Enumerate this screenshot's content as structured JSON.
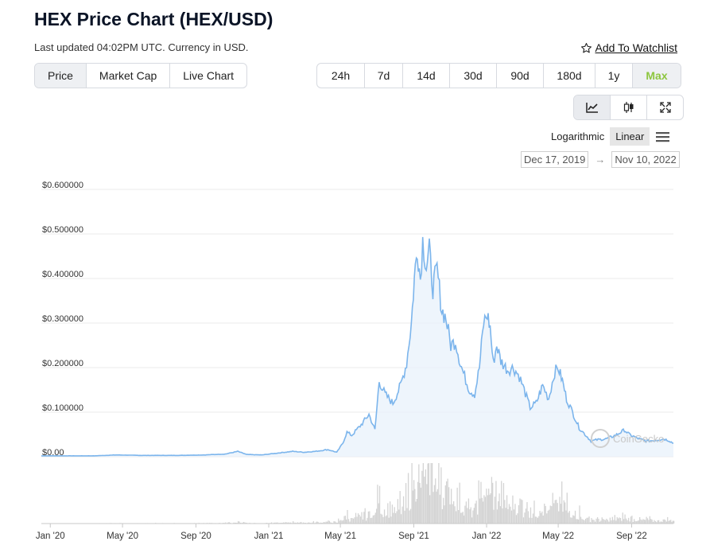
{
  "header": {
    "title": "HEX Price Chart (HEX/USD)",
    "subtitle": "Last updated 04:02PM UTC. Currency in USD.",
    "watchlist_label": "Add To Watchlist"
  },
  "view_tabs": [
    "Price",
    "Market Cap",
    "Live Chart"
  ],
  "active_view": "Price",
  "ranges": [
    "24h",
    "7d",
    "14d",
    "30d",
    "90d",
    "180d",
    "1y",
    "Max"
  ],
  "active_range": "Max",
  "tools": [
    "line-chart-icon",
    "candlestick-icon",
    "fullscreen-icon"
  ],
  "scale": {
    "log_label": "Logarithmic",
    "linear_label": "Linear",
    "selected": "Linear"
  },
  "date_range": {
    "from": "Dec 17, 2019",
    "to": "Nov 10, 2022"
  },
  "watermark": "CoinGecko",
  "colors": {
    "line": "#7cb5ec",
    "area": "#e8f1fb",
    "accent": "#8dc63f",
    "volume": "#d4d4d4"
  },
  "chart_data": {
    "type": "area",
    "title": "",
    "xlabel": "",
    "ylabel": "",
    "y_ticks": [
      "$0.00",
      "$0.100000",
      "$0.200000",
      "$0.300000",
      "$0.400000",
      "$0.500000",
      "$0.600000"
    ],
    "ylim": [
      0,
      0.6
    ],
    "x_ticks": [
      "Jan '20",
      "May '20",
      "Sep '20",
      "Jan '21",
      "May '21",
      "Sep '21",
      "Jan '22",
      "May '22",
      "Sep '22"
    ],
    "x_tick_dates": [
      "2020-01-01",
      "2020-05-01",
      "2020-09-01",
      "2021-01-01",
      "2021-05-01",
      "2021-09-01",
      "2022-01-01",
      "2022-05-01",
      "2022-09-01"
    ],
    "xlim": [
      "2019-12-17",
      "2022-11-10"
    ],
    "series": [
      {
        "name": "Price",
        "points": [
          [
            "2019-12-17",
            0.002
          ],
          [
            "2020-02-01",
            0.002
          ],
          [
            "2020-03-15",
            0.002
          ],
          [
            "2020-04-20",
            0.004
          ],
          [
            "2020-06-01",
            0.003
          ],
          [
            "2020-08-01",
            0.003
          ],
          [
            "2020-09-15",
            0.004
          ],
          [
            "2020-10-20",
            0.006
          ],
          [
            "2020-11-10",
            0.012
          ],
          [
            "2020-11-25",
            0.005
          ],
          [
            "2020-12-20",
            0.004
          ],
          [
            "2021-01-15",
            0.008
          ],
          [
            "2021-02-10",
            0.012
          ],
          [
            "2021-03-01",
            0.01
          ],
          [
            "2021-03-20",
            0.012
          ],
          [
            "2021-04-10",
            0.016
          ],
          [
            "2021-04-25",
            0.01
          ],
          [
            "2021-05-05",
            0.03
          ],
          [
            "2021-05-12",
            0.055
          ],
          [
            "2021-05-20",
            0.048
          ],
          [
            "2021-06-05",
            0.072
          ],
          [
            "2021-06-18",
            0.095
          ],
          [
            "2021-06-28",
            0.06
          ],
          [
            "2021-07-05",
            0.17
          ],
          [
            "2021-07-15",
            0.14
          ],
          [
            "2021-07-28",
            0.12
          ],
          [
            "2021-08-10",
            0.16
          ],
          [
            "2021-08-20",
            0.21
          ],
          [
            "2021-08-28",
            0.3
          ],
          [
            "2021-09-02",
            0.4
          ],
          [
            "2021-09-07",
            0.47
          ],
          [
            "2021-09-12",
            0.4
          ],
          [
            "2021-09-16",
            0.485
          ],
          [
            "2021-09-22",
            0.43
          ],
          [
            "2021-09-27",
            0.46
          ],
          [
            "2021-10-03",
            0.38
          ],
          [
            "2021-10-10",
            0.42
          ],
          [
            "2021-10-18",
            0.33
          ],
          [
            "2021-10-25",
            0.31
          ],
          [
            "2021-11-02",
            0.25
          ],
          [
            "2021-11-10",
            0.26
          ],
          [
            "2021-11-18",
            0.21
          ],
          [
            "2021-11-25",
            0.18
          ],
          [
            "2021-12-03",
            0.15
          ],
          [
            "2021-12-12",
            0.14
          ],
          [
            "2021-12-20",
            0.2
          ],
          [
            "2021-12-27",
            0.3
          ],
          [
            "2022-01-02",
            0.32
          ],
          [
            "2022-01-07",
            0.29
          ],
          [
            "2022-01-12",
            0.21
          ],
          [
            "2022-01-18",
            0.25
          ],
          [
            "2022-01-25",
            0.215
          ],
          [
            "2022-02-05",
            0.195
          ],
          [
            "2022-02-15",
            0.2
          ],
          [
            "2022-02-25",
            0.18
          ],
          [
            "2022-03-05",
            0.15
          ],
          [
            "2022-03-15",
            0.11
          ],
          [
            "2022-03-25",
            0.12
          ],
          [
            "2022-04-05",
            0.16
          ],
          [
            "2022-04-15",
            0.13
          ],
          [
            "2022-04-25",
            0.19
          ],
          [
            "2022-05-01",
            0.2
          ],
          [
            "2022-05-08",
            0.17
          ],
          [
            "2022-05-15",
            0.13
          ],
          [
            "2022-05-25",
            0.1
          ],
          [
            "2022-06-05",
            0.065
          ],
          [
            "2022-06-15",
            0.05
          ],
          [
            "2022-06-25",
            0.035
          ],
          [
            "2022-07-05",
            0.038
          ],
          [
            "2022-07-20",
            0.04
          ],
          [
            "2022-08-05",
            0.048
          ],
          [
            "2022-08-20",
            0.06
          ],
          [
            "2022-08-28",
            0.05
          ],
          [
            "2022-09-10",
            0.042
          ],
          [
            "2022-09-25",
            0.035
          ],
          [
            "2022-10-10",
            0.037
          ],
          [
            "2022-10-25",
            0.04
          ],
          [
            "2022-11-03",
            0.036
          ],
          [
            "2022-11-10",
            0.03
          ]
        ]
      }
    ],
    "grid": true
  }
}
